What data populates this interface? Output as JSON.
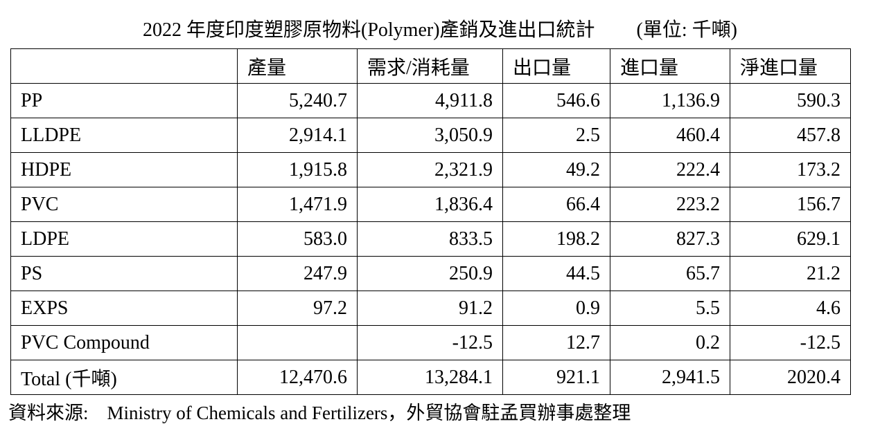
{
  "header": {
    "title": "2022 年度印度塑膠原物料(Polymer)產銷及進出口統計",
    "unit": "(單位: 千噸)"
  },
  "table": {
    "columns": [
      "產量",
      "需求/消耗量",
      "出口量",
      "進口量",
      "淨進口量"
    ],
    "rows": [
      [
        "PP",
        "5,240.7",
        "4,911.8",
        "546.6",
        "1,136.9",
        "590.3"
      ],
      [
        "LLDPE",
        "2,914.1",
        "3,050.9",
        "2.5",
        "460.4",
        "457.8"
      ],
      [
        "HDPE",
        "1,915.8",
        "2,321.9",
        "49.2",
        "222.4",
        "173.2"
      ],
      [
        "PVC",
        "1,471.9",
        "1,836.4",
        "66.4",
        "223.2",
        "156.7"
      ],
      [
        "LDPE",
        "583.0",
        "833.5",
        "198.2",
        "827.3",
        "629.1"
      ],
      [
        "PS",
        "247.9",
        "250.9",
        "44.5",
        "65.7",
        "21.2"
      ],
      [
        "EXPS",
        "97.2",
        "91.2",
        "0.9",
        "5.5",
        "4.6"
      ],
      [
        "PVC Compound",
        null,
        "-12.5",
        "12.7",
        "0.2",
        "-12.5"
      ],
      [
        "Total (千噸)",
        "12,470.6",
        "13,284.1",
        "921.1",
        "2,941.5",
        "2020.4"
      ]
    ]
  },
  "footer": {
    "source": "資料來源:　Ministry of Chemicals and Fertilizers，外貿協會駐孟買辦事處整理"
  }
}
